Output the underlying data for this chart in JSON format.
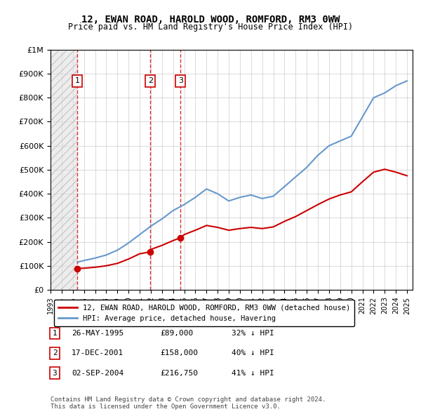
{
  "title": "12, EWAN ROAD, HAROLD WOOD, ROMFORD, RM3 0WW",
  "subtitle": "Price paid vs. HM Land Registry's House Price Index (HPI)",
  "xlabel": "",
  "ylabel": "",
  "ylim": [
    0,
    1000000
  ],
  "yticks": [
    0,
    100000,
    200000,
    300000,
    400000,
    500000,
    600000,
    700000,
    800000,
    900000,
    1000000
  ],
  "ytick_labels": [
    "£0",
    "£100K",
    "£200K",
    "£300K",
    "£400K",
    "£500K",
    "£600K",
    "£700K",
    "£800K",
    "£900K",
    "£1M"
  ],
  "xlim_start": 1993.0,
  "xlim_end": 2025.5,
  "xticks": [
    1993,
    1994,
    1995,
    1996,
    1997,
    1998,
    1999,
    2000,
    2001,
    2002,
    2003,
    2004,
    2005,
    2006,
    2007,
    2008,
    2009,
    2010,
    2011,
    2012,
    2013,
    2014,
    2015,
    2016,
    2017,
    2018,
    2019,
    2020,
    2021,
    2022,
    2023,
    2024,
    2025
  ],
  "hatch_end": 1995.42,
  "sale_points": [
    {
      "index": 1,
      "year": 1995.4,
      "price": 89000,
      "label": "1"
    },
    {
      "index": 2,
      "year": 2001.96,
      "price": 158000,
      "label": "2"
    },
    {
      "index": 3,
      "year": 2004.67,
      "price": 216750,
      "label": "3"
    }
  ],
  "table_rows": [
    {
      "num": "1",
      "date": "26-MAY-1995",
      "price": "£89,000",
      "hpi": "32% ↓ HPI"
    },
    {
      "num": "2",
      "date": "17-DEC-2001",
      "price": "£158,000",
      "hpi": "40% ↓ HPI"
    },
    {
      "num": "3",
      "date": "02-SEP-2004",
      "price": "£216,750",
      "hpi": "41% ↓ HPI"
    }
  ],
  "legend_entries": [
    "12, EWAN ROAD, HAROLD WOOD, ROMFORD, RM3 0WW (detached house)",
    "HPI: Average price, detached house, Havering"
  ],
  "footer": "Contains HM Land Registry data © Crown copyright and database right 2024.\nThis data is licensed under the Open Government Licence v3.0.",
  "red_line_color": "#cc0000",
  "blue_line_color": "#6699cc",
  "hpi_x": [
    1995.42,
    1996.0,
    1997.0,
    1998.0,
    1999.0,
    2000.0,
    2001.0,
    2002.0,
    2003.0,
    2004.0,
    2005.0,
    2006.0,
    2007.0,
    2008.0,
    2009.0,
    2010.0,
    2011.0,
    2012.0,
    2013.0,
    2014.0,
    2015.0,
    2016.0,
    2017.0,
    2018.0,
    2019.0,
    2020.0,
    2021.0,
    2022.0,
    2023.0,
    2024.0,
    2025.0
  ],
  "hpi_y": [
    115000,
    122000,
    132000,
    145000,
    165000,
    195000,
    230000,
    265000,
    295000,
    330000,
    355000,
    385000,
    420000,
    400000,
    370000,
    385000,
    395000,
    380000,
    390000,
    430000,
    470000,
    510000,
    560000,
    600000,
    620000,
    640000,
    720000,
    800000,
    820000,
    850000,
    870000
  ],
  "red_x": [
    1995.42,
    1996.0,
    1997.0,
    1998.0,
    1999.0,
    2000.0,
    2001.0,
    2001.96,
    2002.0,
    2003.0,
    2004.0,
    2004.67,
    2005.0,
    2006.0,
    2007.0,
    2008.0,
    2009.0,
    2010.0,
    2011.0,
    2012.0,
    2013.0,
    2014.0,
    2015.0,
    2016.0,
    2017.0,
    2018.0,
    2019.0,
    2020.0,
    2021.0,
    2022.0,
    2023.0,
    2024.0,
    2025.0
  ],
  "red_y": [
    89000,
    90000,
    94000,
    100000,
    110000,
    128000,
    150000,
    158000,
    168000,
    185000,
    205000,
    216750,
    230000,
    248000,
    268000,
    260000,
    248000,
    255000,
    260000,
    255000,
    262000,
    285000,
    305000,
    330000,
    355000,
    378000,
    395000,
    408000,
    450000,
    490000,
    502000,
    490000,
    475000
  ]
}
